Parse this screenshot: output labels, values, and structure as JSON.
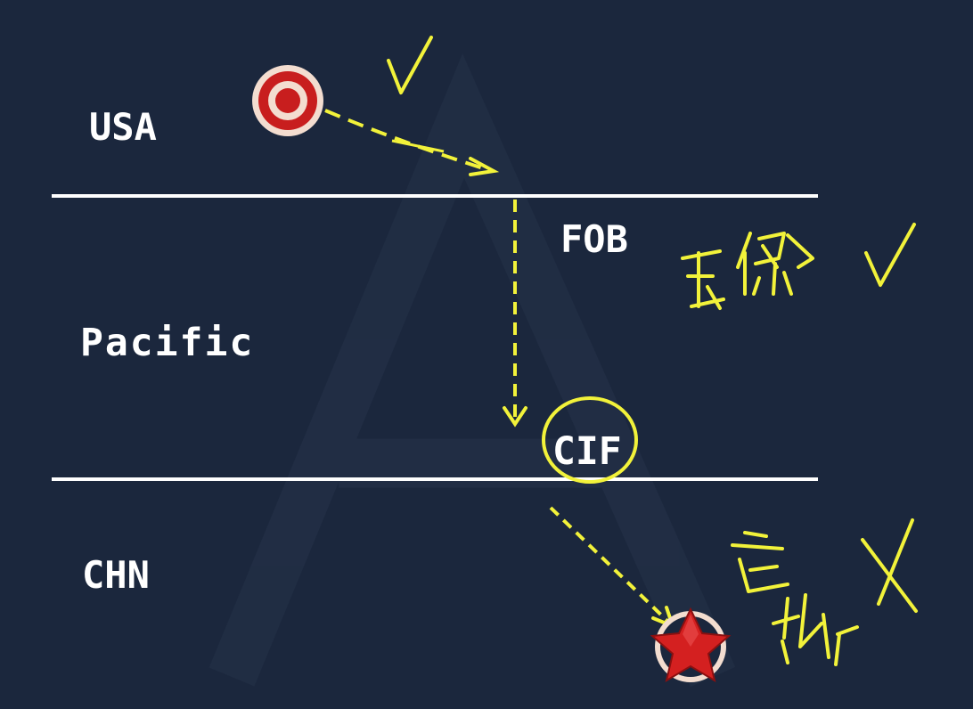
{
  "regions": {
    "top": "USA",
    "middle": "Pacific",
    "bottom": "CHN"
  },
  "terms": {
    "fob": "FOB",
    "cif": "CIF"
  },
  "colors": {
    "background": "#1b273d",
    "boundary_line": "#ffffff",
    "label_text": "#ffffff",
    "annotation": "#f2f23a",
    "target_red": "#c81e1e",
    "target_ring": "#f3ddd0",
    "star_red": "#d42020"
  },
  "icons": {
    "origin": "target-icon",
    "destination": "star-icon"
  }
}
